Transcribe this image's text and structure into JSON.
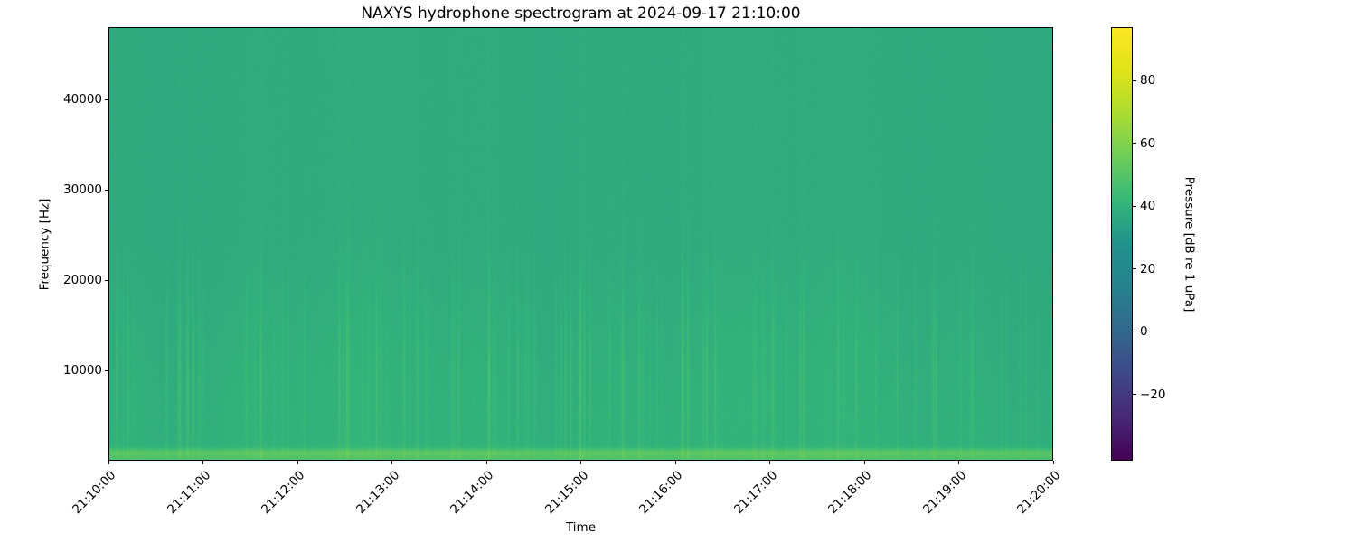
{
  "chart_data": {
    "type": "heatmap",
    "subtype": "spectrogram",
    "title": "NAXYS hydrophone spectrogram at 2024-09-17 21:10:00",
    "xlabel": "Time",
    "ylabel": "Frequency [Hz]",
    "date": "2024-09-17",
    "time_start": "21:10:00",
    "time_end": "21:20:00",
    "x_ticks": [
      "21:10:00",
      "21:11:00",
      "21:12:00",
      "21:13:00",
      "21:14:00",
      "21:15:00",
      "21:16:00",
      "21:17:00",
      "21:18:00",
      "21:19:00",
      "21:20:00"
    ],
    "x_tick_interval_seconds": 60,
    "x_tick_rotation_deg": 45,
    "y_ticks": [
      10000,
      20000,
      30000,
      40000
    ],
    "y_tick_labels": [
      "10000",
      "20000",
      "30000",
      "40000"
    ],
    "freq_range_hz": [
      0,
      48000
    ],
    "grid": false,
    "colormap": "viridis",
    "colormap_stops": [
      {
        "pos": 0.0,
        "color": "#440154"
      },
      {
        "pos": 0.1,
        "color": "#482878"
      },
      {
        "pos": 0.2,
        "color": "#3e4989"
      },
      {
        "pos": 0.3,
        "color": "#31688e"
      },
      {
        "pos": 0.4,
        "color": "#26828e"
      },
      {
        "pos": 0.5,
        "color": "#21918c"
      },
      {
        "pos": 0.6,
        "color": "#35b779"
      },
      {
        "pos": 0.7,
        "color": "#6ccd5a"
      },
      {
        "pos": 0.8,
        "color": "#aadc32"
      },
      {
        "pos": 0.9,
        "color": "#dfe318"
      },
      {
        "pos": 1.0,
        "color": "#fde725"
      }
    ],
    "colorbar": {
      "label": "Pressure [dB re 1 uPa]",
      "position": "right",
      "ticks": [
        80,
        60,
        40,
        20,
        0,
        -20
      ],
      "tick_labels": [
        "80",
        "60",
        "40",
        "20",
        "0",
        "−20"
      ],
      "vmin": -41,
      "vmax": 97
    },
    "content_summary": {
      "background_broadband_level_db": 38,
      "low_frequency_region_level_db": 40,
      "vertical_streak_levels_db": [
        45,
        51
      ],
      "streak_band_hz": [
        2000,
        18000
      ],
      "surface_noise_band_hz": [
        0,
        1400
      ],
      "surface_noise_band_level_db": [
        47,
        51
      ],
      "dominant_color": "#23ab81",
      "description": "Mostly uniform teal-green field (~38 dB) with thin brighter vertical streaks concentrated below ~18 kHz and a bright green band at the lowest frequencies (<1.4 kHz)."
    },
    "texture": {
      "seed": 20240917,
      "background_db": 37.5,
      "low_freq_extra_db": 2,
      "streak_probability": 0.1,
      "streak_db_max": 12,
      "streak_band_center_hz": 8500,
      "streak_band_sigma_hz": 7500,
      "slow_variation_db": 1.2,
      "pixel_noise_db": 1.6,
      "surface_band": {
        "cutoff_hz": 1400,
        "boost_db": 8,
        "line_center_hz": 800,
        "line_sigma_hz": 350,
        "line_boost_db": 8
      }
    }
  }
}
